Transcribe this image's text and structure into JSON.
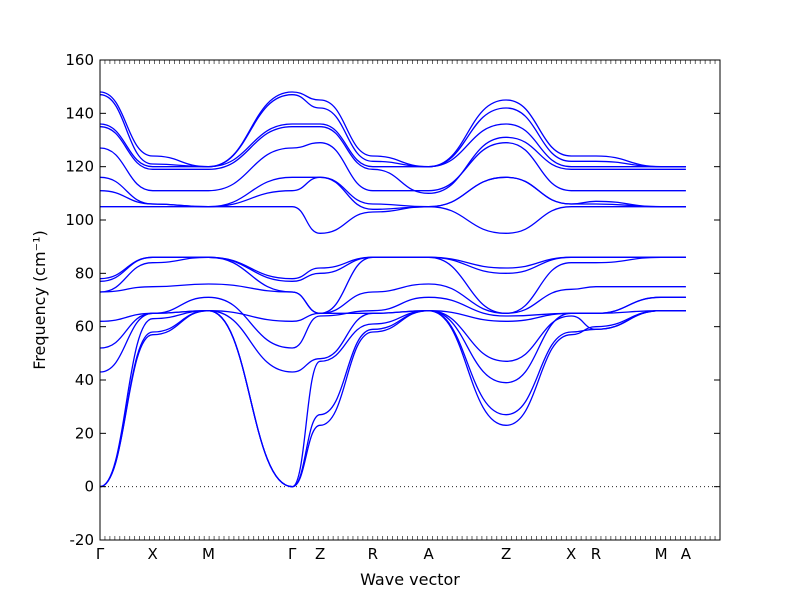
{
  "chart_data": {
    "type": "line",
    "title": "",
    "xlabel": "Wave vector",
    "ylabel": "Frequency (cm⁻¹)",
    "ylim": [
      -20,
      160
    ],
    "yticks": [
      -20,
      0,
      20,
      40,
      60,
      80,
      100,
      120,
      140,
      160
    ],
    "grid": false,
    "zero_line": true,
    "line_color": "#0000ff",
    "x": [
      0.0,
      0.085,
      0.175,
      0.31,
      0.355,
      0.44,
      0.53,
      0.655,
      0.76,
      0.8,
      0.905,
      0.945
    ],
    "xticks": [
      {
        "label": "Γ",
        "x": 0.0
      },
      {
        "label": "X",
        "x": 0.085
      },
      {
        "label": "M",
        "x": 0.175
      },
      {
        "label": "Γ",
        "x": 0.31
      },
      {
        "label": "Z",
        "x": 0.355
      },
      {
        "label": "R",
        "x": 0.44
      },
      {
        "label": "A",
        "x": 0.53
      },
      {
        "label": "Z",
        "x": 0.655
      },
      {
        "label": "X",
        "x": 0.76
      },
      {
        "label": "R",
        "x": 0.8
      },
      {
        "label": "M",
        "x": 0.905
      },
      {
        "label": "A",
        "x": 0.945
      }
    ],
    "series": [
      {
        "values": [
          0,
          57,
          66,
          0,
          23,
          58,
          66,
          23,
          57,
          60,
          66,
          66
        ]
      },
      {
        "values": [
          0,
          58,
          66,
          0,
          27,
          59,
          66,
          27,
          58,
          59,
          66,
          66
        ]
      },
      {
        "values": [
          0,
          63,
          66,
          0,
          47,
          61,
          66,
          47,
          64,
          59,
          66,
          66
        ]
      },
      {
        "values": [
          43,
          65,
          66,
          43,
          48,
          65,
          66,
          39,
          65,
          65,
          71,
          71
        ]
      },
      {
        "values": [
          52,
          65,
          71,
          52,
          64,
          66,
          71,
          64,
          65,
          65,
          71,
          71
        ]
      },
      {
        "values": [
          62,
          65,
          66,
          62,
          65,
          65,
          66,
          62,
          65,
          65,
          66,
          66
        ]
      },
      {
        "values": [
          73,
          75,
          76,
          73,
          65,
          73,
          76,
          65,
          74,
          75,
          75,
          75
        ]
      },
      {
        "values": [
          73,
          84,
          86,
          73,
          65,
          86,
          86,
          65,
          84,
          84,
          86,
          86
        ]
      },
      {
        "values": [
          77,
          86,
          86,
          77,
          80,
          86,
          86,
          80,
          86,
          86,
          86,
          86
        ]
      },
      {
        "values": [
          78,
          86,
          86,
          78,
          82,
          86,
          86,
          82,
          86,
          86,
          86,
          86
        ]
      },
      {
        "values": [
          105,
          105,
          105,
          105,
          95,
          103,
          105,
          95,
          105,
          105,
          105,
          105
        ]
      },
      {
        "values": [
          111,
          106,
          105,
          111,
          116,
          104,
          105,
          116,
          106,
          106,
          105,
          105
        ]
      },
      {
        "values": [
          116,
          106,
          105,
          116,
          116,
          106,
          105,
          116,
          106,
          107,
          105,
          105
        ]
      },
      {
        "values": [
          127,
          111,
          111,
          127,
          129,
          111,
          111,
          129,
          111,
          111,
          111,
          111
        ]
      },
      {
        "values": [
          135,
          119,
          119,
          135,
          135,
          119,
          110,
          131,
          119,
          119,
          119,
          119
        ]
      },
      {
        "values": [
          136,
          120,
          120,
          136,
          136,
          120,
          120,
          136,
          120,
          120,
          120,
          120
        ]
      },
      {
        "values": [
          147,
          121,
          120,
          147,
          142,
          122,
          120,
          142,
          122,
          122,
          120,
          120
        ]
      },
      {
        "values": [
          148,
          124,
          120,
          148,
          145,
          124,
          120,
          145,
          124,
          124,
          120,
          120
        ]
      }
    ]
  }
}
